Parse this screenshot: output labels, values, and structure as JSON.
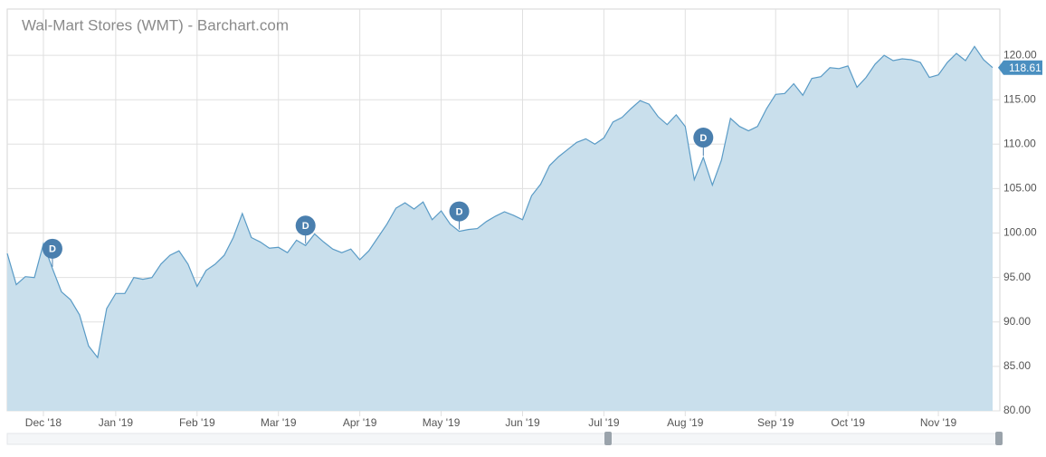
{
  "chart_data": {
    "type": "area",
    "title": "Wal-Mart Stores (WMT) - Barchart.com",
    "categories": [
      null,
      null,
      null,
      null,
      "Dec '18",
      null,
      null,
      null,
      null,
      null,
      null,
      null,
      "Jan '19",
      null,
      null,
      null,
      null,
      null,
      null,
      null,
      null,
      "Feb '19",
      null,
      null,
      null,
      null,
      null,
      null,
      null,
      null,
      "Mar '19",
      null,
      null,
      null,
      null,
      null,
      null,
      null,
      null,
      "Apr '19",
      null,
      null,
      null,
      null,
      null,
      null,
      null,
      null,
      "May '19",
      null,
      null,
      null,
      null,
      null,
      null,
      null,
      null,
      "Jun '19",
      null,
      null,
      null,
      null,
      null,
      null,
      null,
      null,
      "Jul '19",
      null,
      null,
      null,
      null,
      null,
      null,
      null,
      null,
      "Aug '19",
      null,
      null,
      null,
      null,
      null,
      null,
      null,
      null,
      null,
      "Sep '19",
      null,
      null,
      null,
      null,
      null,
      null,
      null,
      "Oct '19",
      null,
      null,
      null,
      null,
      null,
      null,
      null,
      null,
      null,
      "Nov '19",
      null,
      null,
      null,
      null,
      null,
      null
    ],
    "values": [
      97.7,
      94.2,
      95.1,
      95.0,
      98.8,
      96.0,
      93.4,
      92.5,
      90.8,
      87.3,
      86.0,
      91.5,
      93.2,
      93.2,
      95.0,
      94.8,
      95.0,
      96.5,
      97.5,
      98.0,
      96.5,
      94.0,
      95.8,
      96.5,
      97.5,
      99.5,
      102.2,
      99.5,
      99.0,
      98.3,
      98.4,
      97.8,
      99.2,
      98.6,
      99.9,
      99.0,
      98.2,
      97.8,
      98.2,
      97.0,
      98.0,
      99.5,
      101.0,
      102.8,
      103.4,
      102.7,
      103.5,
      101.5,
      102.5,
      101.0,
      100.2,
      100.4,
      100.5,
      101.3,
      101.9,
      102.4,
      102.0,
      101.5,
      104.2,
      105.5,
      107.6,
      108.6,
      109.4,
      110.2,
      110.6,
      110.0,
      110.7,
      112.5,
      113.0,
      114.0,
      114.9,
      114.5,
      113.1,
      112.2,
      113.3,
      112.0,
      106.0,
      108.5,
      105.4,
      108.2,
      112.9,
      112.0,
      111.5,
      112.0,
      114.0,
      115.6,
      115.7,
      116.8,
      115.5,
      117.4,
      117.6,
      118.6,
      118.5,
      118.8,
      116.4,
      117.5,
      119.0,
      120.0,
      119.4,
      119.6,
      119.5,
      119.2,
      117.5,
      117.8,
      119.2,
      120.2,
      119.4,
      121.0,
      119.5,
      118.61
    ],
    "color": "#5a9bc6",
    "fill": "#c9dfec",
    "ylim": [
      80,
      125.2
    ],
    "yticks": [
      {
        "value": 80,
        "label": "80.00"
      },
      {
        "value": 85,
        "label": "85.00"
      },
      {
        "value": 90,
        "label": "90.00"
      },
      {
        "value": 95,
        "label": "95.00"
      },
      {
        "value": 100,
        "label": "100.00"
      },
      {
        "value": 105,
        "label": "105.00"
      },
      {
        "value": 110,
        "label": "110.00"
      },
      {
        "value": 115,
        "label": "115.00"
      },
      {
        "value": 120,
        "label": "120.00"
      }
    ],
    "grid": true,
    "annotations": [
      {
        "text": "D",
        "index": 5
      },
      {
        "text": "D",
        "index": 33
      },
      {
        "text": "D",
        "index": 50
      },
      {
        "text": "D",
        "index": 77
      }
    ]
  }
}
